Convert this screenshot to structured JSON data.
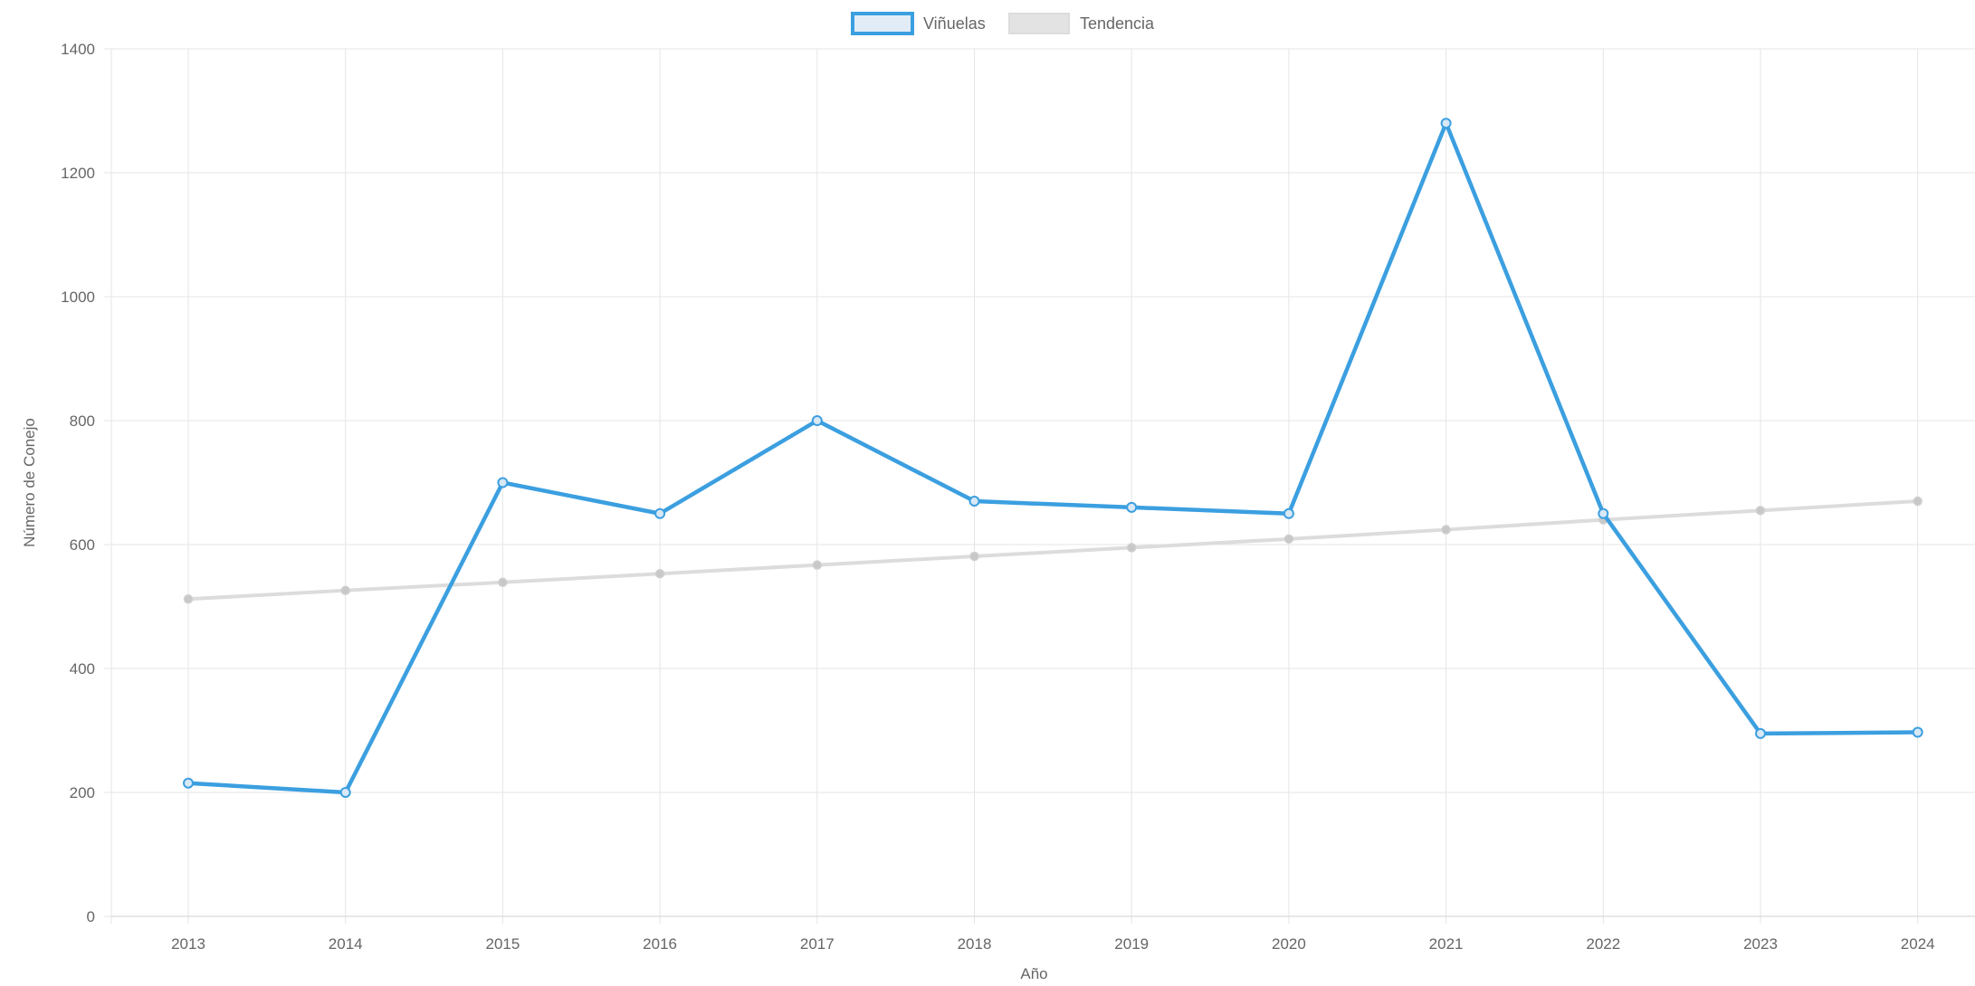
{
  "chart_data": {
    "type": "line",
    "xlabel": "Año",
    "ylabel": "Número de Conejo",
    "ylim": [
      0,
      1400
    ],
    "yticks": [
      0,
      200,
      400,
      600,
      800,
      1000,
      1200,
      1400
    ],
    "categories": [
      "2013",
      "2014",
      "2015",
      "2016",
      "2017",
      "2018",
      "2019",
      "2020",
      "2021",
      "2022",
      "2023",
      "2024"
    ],
    "grid": true,
    "legend_position": "top-center",
    "series": [
      {
        "name": "Viñuelas",
        "color": "#3b9fe0",
        "values": [
          215,
          200,
          700,
          650,
          800,
          670,
          660,
          650,
          1280,
          650,
          295,
          297
        ]
      },
      {
        "name": "Tendencia",
        "color": "#dcdcdc",
        "values": [
          512,
          526,
          539,
          553,
          567,
          581,
          595,
          609,
          624,
          640,
          655,
          670
        ]
      }
    ]
  }
}
